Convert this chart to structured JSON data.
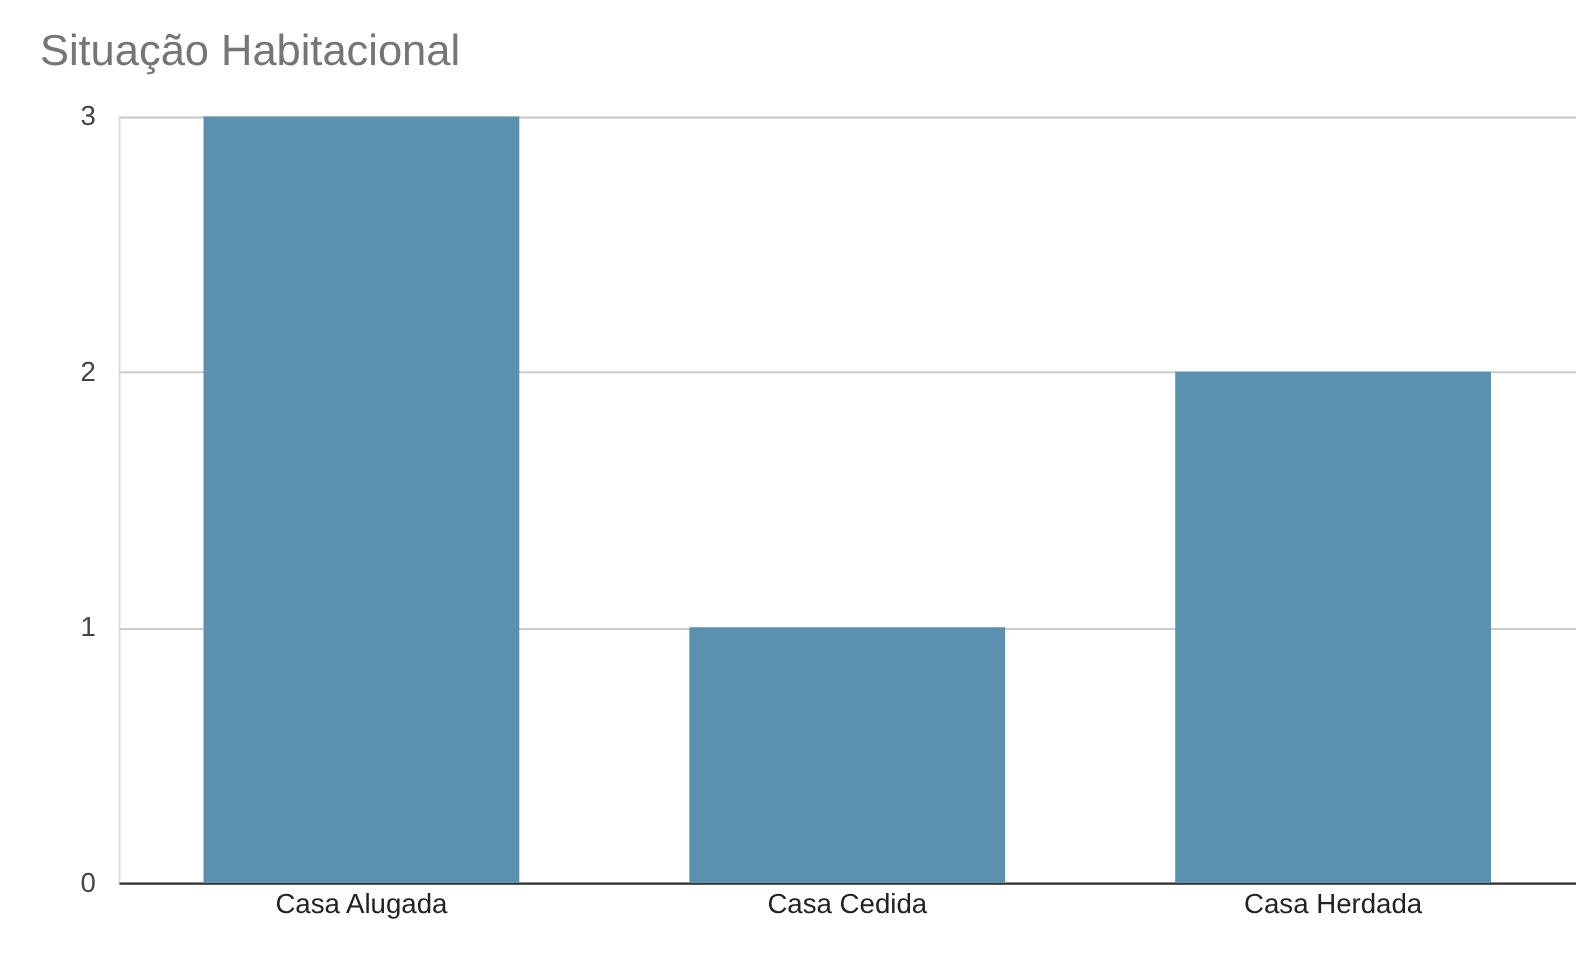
{
  "chart_data": {
    "type": "bar",
    "title": "Situação Habitacional",
    "categories": [
      "Casa Alugada",
      "Casa Cedida",
      "Casa Herdada"
    ],
    "values": [
      3,
      1,
      2
    ],
    "color": "#5b91ae",
    "ylim": [
      0,
      3
    ],
    "yticks": [
      0,
      1,
      2,
      3
    ],
    "grid": "y"
  }
}
